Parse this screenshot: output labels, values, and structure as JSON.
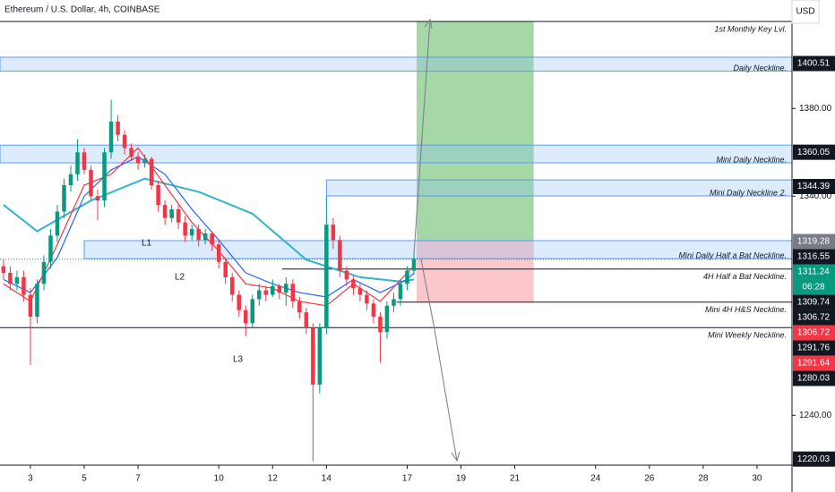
{
  "chart_data": {
    "type": "candlestick",
    "title": "Ethereum / U.S. Dollar, 4h, COINBASE",
    "currency": "USD",
    "countdown": "06:28",
    "x": [
      2,
      2.25,
      2.5,
      2.75,
      3,
      3.25,
      3.5,
      3.75,
      4,
      4.25,
      4.5,
      4.75,
      5,
      5.25,
      5.5,
      5.75,
      6,
      6.25,
      6.5,
      6.75,
      7,
      7.25,
      7.5,
      7.75,
      8,
      8.25,
      8.5,
      8.75,
      9,
      9.25,
      9.5,
      9.75,
      10,
      10.25,
      10.5,
      10.75,
      11,
      11.25,
      11.5,
      11.75,
      12,
      12.25,
      12.5,
      12.75,
      13,
      13.25,
      13.5,
      13.75,
      14,
      14.25,
      14.5,
      14.75,
      15,
      15.25,
      15.5,
      15.75,
      16,
      16.25,
      16.5,
      16.75,
      17,
      17.25
    ],
    "open": [
      1308,
      1305,
      1300,
      1303,
      1295,
      1285,
      1300,
      1310,
      1322,
      1333,
      1345,
      1350,
      1360,
      1352,
      1340,
      1338,
      1360,
      1374,
      1368,
      1362,
      1358,
      1355,
      1357,
      1345,
      1336,
      1330,
      1334,
      1328,
      1322,
      1325,
      1320,
      1323,
      1318,
      1310,
      1303,
      1295,
      1288,
      1282,
      1293,
      1297,
      1295,
      1299,
      1296,
      1300,
      1292,
      1287,
      1280,
      1254,
      1280,
      1327,
      1320,
      1306,
      1302,
      1298,
      1295,
      1291,
      1285,
      1278,
      1290,
      1293,
      1300,
      1306
    ],
    "high": [
      1311,
      1308,
      1306,
      1306,
      1298,
      1302,
      1313,
      1325,
      1336,
      1348,
      1354,
      1366,
      1362,
      1354,
      1343,
      1362,
      1384,
      1377,
      1370,
      1364,
      1360,
      1359,
      1358,
      1347,
      1338,
      1336,
      1336,
      1331,
      1327,
      1327,
      1325,
      1324,
      1320,
      1312,
      1305,
      1297,
      1290,
      1295,
      1300,
      1299,
      1302,
      1300,
      1303,
      1302,
      1294,
      1289,
      1282,
      1282,
      1340,
      1330,
      1322,
      1308,
      1304,
      1300,
      1297,
      1293,
      1287,
      1292,
      1296,
      1302,
      1308,
      1314
    ],
    "low": [
      1302,
      1297,
      1297,
      1292,
      1263,
      1282,
      1297,
      1307,
      1319,
      1330,
      1342,
      1347,
      1350,
      1338,
      1329,
      1335,
      1357,
      1365,
      1359,
      1356,
      1352,
      1353,
      1343,
      1333,
      1327,
      1328,
      1325,
      1319,
      1320,
      1317,
      1318,
      1315,
      1307,
      1300,
      1292,
      1285,
      1276,
      1280,
      1290,
      1292,
      1294,
      1293,
      1290,
      1289,
      1284,
      1277,
      1219,
      1250,
      1277,
      1316,
      1303,
      1299,
      1295,
      1292,
      1288,
      1282,
      1264,
      1275,
      1287,
      1290,
      1297,
      1304
    ],
    "close": [
      1305,
      1300,
      1303,
      1295,
      1285,
      1300,
      1310,
      1322,
      1333,
      1345,
      1350,
      1360,
      1352,
      1340,
      1338,
      1360,
      1374,
      1368,
      1362,
      1358,
      1355,
      1357,
      1345,
      1336,
      1330,
      1334,
      1328,
      1322,
      1325,
      1320,
      1323,
      1318,
      1310,
      1303,
      1295,
      1288,
      1282,
      1293,
      1297,
      1295,
      1299,
      1296,
      1300,
      1292,
      1287,
      1280,
      1254,
      1280,
      1327,
      1320,
      1306,
      1302,
      1298,
      1295,
      1291,
      1285,
      1278,
      1290,
      1293,
      1300,
      1306,
      1311.24
    ],
    "up_color": "#089981",
    "down_color": "#f23645",
    "series": [
      {
        "color": "#2fb6c8",
        "x": [
          2,
          3.25,
          5.25,
          7.25,
          9.25,
          11.25,
          13.25,
          15.25,
          16.75,
          17.25
        ],
        "values": [
          1336,
          1324,
          1338,
          1348,
          1342,
          1332,
          1311,
          1303,
          1301,
          1302
        ]
      },
      {
        "color": "#2962ff",
        "x": [
          2,
          3,
          4,
          5,
          6,
          7,
          8,
          9,
          10,
          11,
          12,
          13,
          14,
          15,
          16,
          17,
          17.25
        ],
        "values": [
          1302,
          1296,
          1312,
          1340,
          1352,
          1358,
          1350,
          1334,
          1320,
          1305,
          1300,
          1296,
          1294,
          1302,
          1296,
          1302,
          1305
        ]
      },
      {
        "color": "#f23645",
        "x": [
          2,
          3,
          4,
          5,
          6,
          7,
          8,
          9,
          10,
          11,
          12,
          13,
          14,
          15,
          16,
          17,
          17.25
        ],
        "values": [
          1300,
          1292,
          1318,
          1345,
          1350,
          1362,
          1345,
          1328,
          1315,
          1300,
          1298,
          1292,
          1290,
          1300,
          1292,
          1305,
          1308
        ]
      }
    ],
    "levels": [
      {
        "label": "1st Monthly Key Lvl.",
        "price": 1419.7,
        "from": 1.87
      },
      {
        "label": "Daily Neckline.",
        "low": 1397.0,
        "high": 1403.4,
        "from": 1.87
      },
      {
        "label": "Mini Daily Neckline.",
        "low": 1355.2,
        "high": 1363.3,
        "from": 1.87
      },
      {
        "label": "Mini Daily Neckline 2.",
        "low": 1340.1,
        "high": 1347.4,
        "from": 14
      },
      {
        "label": "Mini Daily Half a Bat Neckline.",
        "low": 1311.5,
        "high": 1319.7,
        "from": 5
      },
      {
        "label": "4H Half a Bat Neckline.",
        "price": 1306.72,
        "from": 12.35
      },
      {
        "label": "Mini 4H H&S Neckline.",
        "price": 1291.64,
        "from": 16.6
      },
      {
        "label": "Mini Weekly Neckline.",
        "price": 1280.03,
        "from": 1.87
      }
    ],
    "position": {
      "start": 17.35,
      "end": 21.7,
      "entry": 1319.28,
      "target": 1419.7,
      "stop": 1291.64
    },
    "price_tags": [
      {
        "value": 1400.51,
        "color": "#131722"
      },
      {
        "value": 1360.05,
        "color": "#131722"
      },
      {
        "value": 1344.39,
        "color": "#131722"
      },
      {
        "value": 1319.28,
        "color": "#787b86"
      },
      {
        "value": 1316.55,
        "color": "#131722"
      },
      {
        "value": 1311.24,
        "color": "#089981"
      },
      {
        "value": 1309.74,
        "color": "#131722"
      },
      {
        "value": 1306.72,
        "color": "#131722"
      },
      {
        "value": 1306.72,
        "color": "#f23645"
      },
      {
        "value": 1291.76,
        "color": "#131722"
      },
      {
        "value": 1291.64,
        "color": "#f23645"
      },
      {
        "value": 1280.03,
        "color": "#131722"
      },
      {
        "value": 1220.03,
        "color": "#131722"
      }
    ],
    "annotations": [
      "L1",
      "L2",
      "L3"
    ],
    "xlim": [
      1.87,
      31.3
    ],
    "ylim": [
      1217.25,
      1429.5
    ],
    "xticks": [
      3,
      5,
      7,
      10,
      12,
      14,
      17,
      19,
      21,
      24,
      26,
      28,
      30
    ],
    "yticks": [
      {
        "value": 1380,
        "label": "1380.00"
      },
      {
        "value": 1340,
        "label": "1340.00"
      },
      {
        "value": 1240,
        "label": "1240.00"
      }
    ]
  }
}
